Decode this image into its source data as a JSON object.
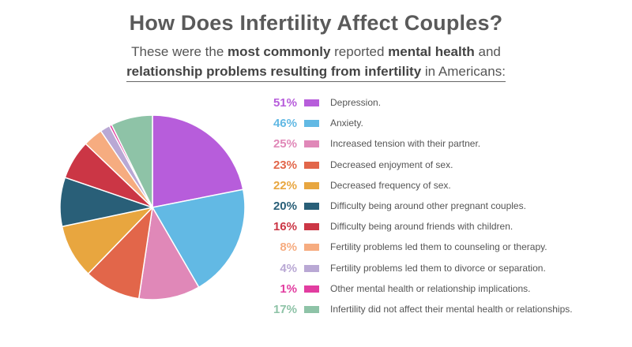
{
  "header": {
    "title": "How Does Infertility Affect Couples?",
    "subtitle_line1_a": "These were the ",
    "subtitle_line1_b": "most commonly",
    "subtitle_line1_c": " reported ",
    "subtitle_line1_d": "mental health",
    "subtitle_line1_e": " and",
    "subtitle_line2_a": "relationship problems resulting from infertility",
    "subtitle_line2_b": " in Americans:"
  },
  "chart_data": {
    "type": "pie",
    "title": "How Does Infertility Affect Couples?",
    "slices": [
      {
        "pct_label": "51%",
        "value": 51,
        "label": "Depression.",
        "color": "#b75ddb"
      },
      {
        "pct_label": "46%",
        "value": 46,
        "label": "Anxiety.",
        "color": "#62b9e4"
      },
      {
        "pct_label": "25%",
        "value": 25,
        "label": "Increased tension with their partner.",
        "color": "#e088b8"
      },
      {
        "pct_label": "23%",
        "value": 23,
        "label": "Decreased enjoyment of sex.",
        "color": "#e2664a"
      },
      {
        "pct_label": "22%",
        "value": 22,
        "label": "Decreased frequency of sex.",
        "color": "#e8a63f"
      },
      {
        "pct_label": "20%",
        "value": 20,
        "label": "Difficulty being around other pregnant couples.",
        "color": "#295f78"
      },
      {
        "pct_label": "16%",
        "value": 16,
        "label": "Difficulty being around friends with children.",
        "color": "#cb3645"
      },
      {
        "pct_label": "8%",
        "value": 8,
        "label": "Fertility problems led them to counseling or therapy.",
        "color": "#f6ac80"
      },
      {
        "pct_label": "4%",
        "value": 4,
        "label": "Fertility problems led them to divorce or separation.",
        "color": "#b9a8d4"
      },
      {
        "pct_label": "1%",
        "value": 1,
        "label": "Other mental health or relationship implications.",
        "color": "#e23da0"
      },
      {
        "pct_label": "17%",
        "value": 17,
        "label": "Infertility did not affect their mental health or relationships.",
        "color": "#8ec3a7"
      }
    ]
  }
}
